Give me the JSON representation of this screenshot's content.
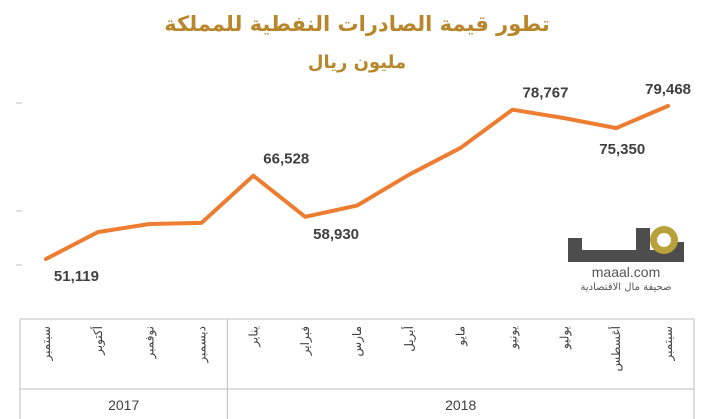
{
  "chart_data": {
    "type": "line",
    "title": "تطور قيمة الصادرات النفطية للمملكة",
    "subtitle": "مليون ريال",
    "categories": [
      "سبتمبر",
      "أكتوبر",
      "نوفمبر",
      "ديسمبر",
      "يناير",
      "فبراير",
      "مارس",
      "أبريل",
      "مايو",
      "يونيو",
      "يوليو",
      "أغسطس",
      "سبتمبر"
    ],
    "years": [
      {
        "label": "2017",
        "start": 0,
        "end": 3
      },
      {
        "label": "2018",
        "start": 4,
        "end": 12
      }
    ],
    "series": [
      {
        "values": [
          51119,
          56100,
          57600,
          57800,
          66528,
          58930,
          61000,
          66700,
          71700,
          78767,
          77200,
          75350,
          79468
        ],
        "color": "#ed7d31"
      }
    ],
    "data_labels": [
      {
        "index": 0,
        "text": "51,119",
        "pos": "below-right"
      },
      {
        "index": 4,
        "text": "66,528",
        "pos": "above-right"
      },
      {
        "index": 5,
        "text": "58,930",
        "pos": "below-right"
      },
      {
        "index": 9,
        "text": "78,767",
        "pos": "above-right"
      },
      {
        "index": 11,
        "text": "75,350",
        "pos": "below"
      },
      {
        "index": 12,
        "text": "79,468",
        "pos": "above"
      }
    ],
    "ylim": [
      50000,
      80000
    ],
    "grid": false
  },
  "logo": {
    "text": "maaal.com",
    "tagline": "صحيفة مال الاقتصادية",
    "colors": {
      "gray": "#4d4d4d",
      "gold": "#b8a03a"
    }
  }
}
